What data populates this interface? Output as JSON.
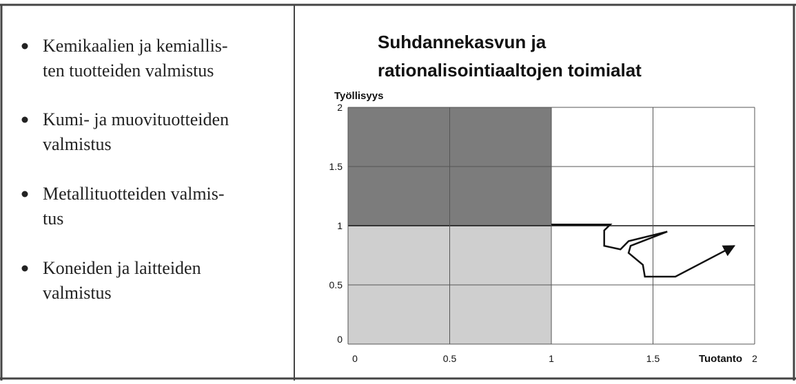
{
  "bullets": [
    {
      "lines": [
        "Kemikaalien ja kemiallis-",
        "ten tuotteiden valmistus"
      ]
    },
    {
      "lines": [
        "Kumi- ja muovituotteiden",
        "valmistus"
      ]
    },
    {
      "lines": [
        "Metallituotteiden valmis-",
        "tus"
      ]
    },
    {
      "lines": [
        "Koneiden ja laitteiden",
        "valmistus"
      ]
    }
  ],
  "chart_data": {
    "type": "line",
    "title_lines": [
      "Suhdannekasvun ja",
      "rationalisointiaaltojen toimialat"
    ],
    "y_label": "Työllisyys",
    "x_label": "Tuotanto",
    "x": [
      1.0,
      1.29,
      1.26,
      1.26,
      1.34,
      1.38,
      1.57,
      1.39,
      1.38,
      1.45,
      1.46,
      1.61,
      1.9
    ],
    "values": [
      1.01,
      1.01,
      0.96,
      0.83,
      0.8,
      0.87,
      0.95,
      0.83,
      0.77,
      0.67,
      0.57,
      0.57,
      0.83
    ],
    "color": "#111111",
    "xlim": [
      0,
      2
    ],
    "ylim": [
      0,
      2
    ],
    "xticks": [
      0,
      0.5,
      1,
      1.5,
      2
    ],
    "yticks": [
      0,
      0.5,
      1,
      1.5,
      2
    ],
    "grid": true
  }
}
